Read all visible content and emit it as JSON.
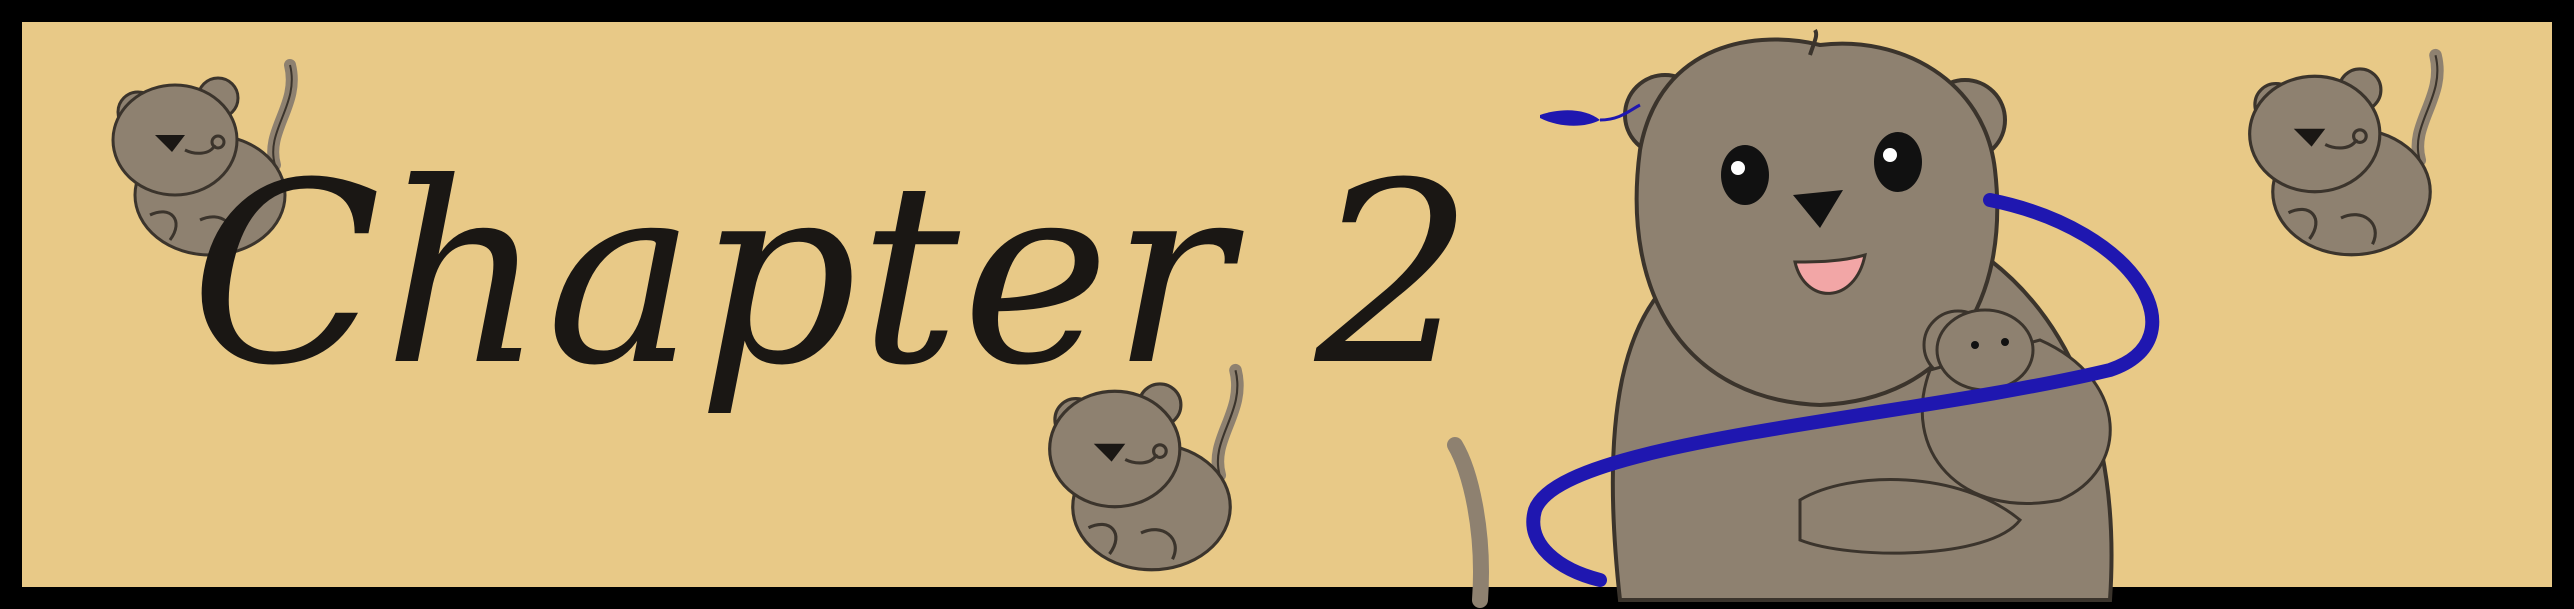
{
  "banner": {
    "title": "Chapter 2",
    "colors": {
      "background": "#e8c987",
      "frame": "#000000",
      "fur": "#8e8170",
      "ribbon": "#1f17b0",
      "text": "#1a1714"
    },
    "illustrations": [
      "rat-mascot-small",
      "rat-mascot-large-holding-baby",
      "blue-ribbon-snake"
    ]
  }
}
